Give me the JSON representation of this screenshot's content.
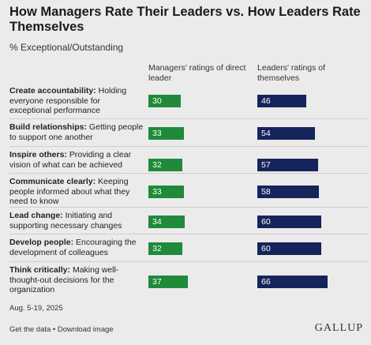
{
  "title": "How Managers Rate Their Leaders vs. How Leaders Rate Themselves",
  "subtitle": "% Exceptional/Outstanding",
  "chart_data": {
    "type": "bar",
    "title": "How Managers Rate Their Leaders vs. How Leaders Rate Themselves",
    "subtitle": "% Exceptional/Outstanding",
    "categories": [
      {
        "name": "Create accountability:",
        "desc": " Holding everyone responsible for exceptional performance"
      },
      {
        "name": "Build relationships:",
        "desc": " Getting people to support one another"
      },
      {
        "name": "Inspire others:",
        "desc": " Providing a clear vision of what can be achieved"
      },
      {
        "name": "Communicate clearly:",
        "desc": " Keeping people informed about what they need to know"
      },
      {
        "name": "Lead change:",
        "desc": " Initiating and supporting necessary changes"
      },
      {
        "name": "Develop people:",
        "desc": " Encouraging the development of colleagues"
      },
      {
        "name": "Think critically:",
        "desc": " Making well-thought-out decisions for the organization"
      }
    ],
    "series": [
      {
        "name": "Managers' ratings of direct leader",
        "color": "#1f8a3a",
        "values": [
          30,
          33,
          32,
          33,
          34,
          32,
          37
        ]
      },
      {
        "name": "Leaders' ratings of themselves",
        "color": "#16245c",
        "values": [
          46,
          54,
          57,
          58,
          60,
          60,
          66
        ]
      }
    ],
    "grid": false,
    "legend": "column headers"
  },
  "footer": {
    "date": "Aug. 5-19, 2025",
    "get_data": "Get the data",
    "separator": " • ",
    "download": "Download image",
    "brand": "GALLUP"
  }
}
